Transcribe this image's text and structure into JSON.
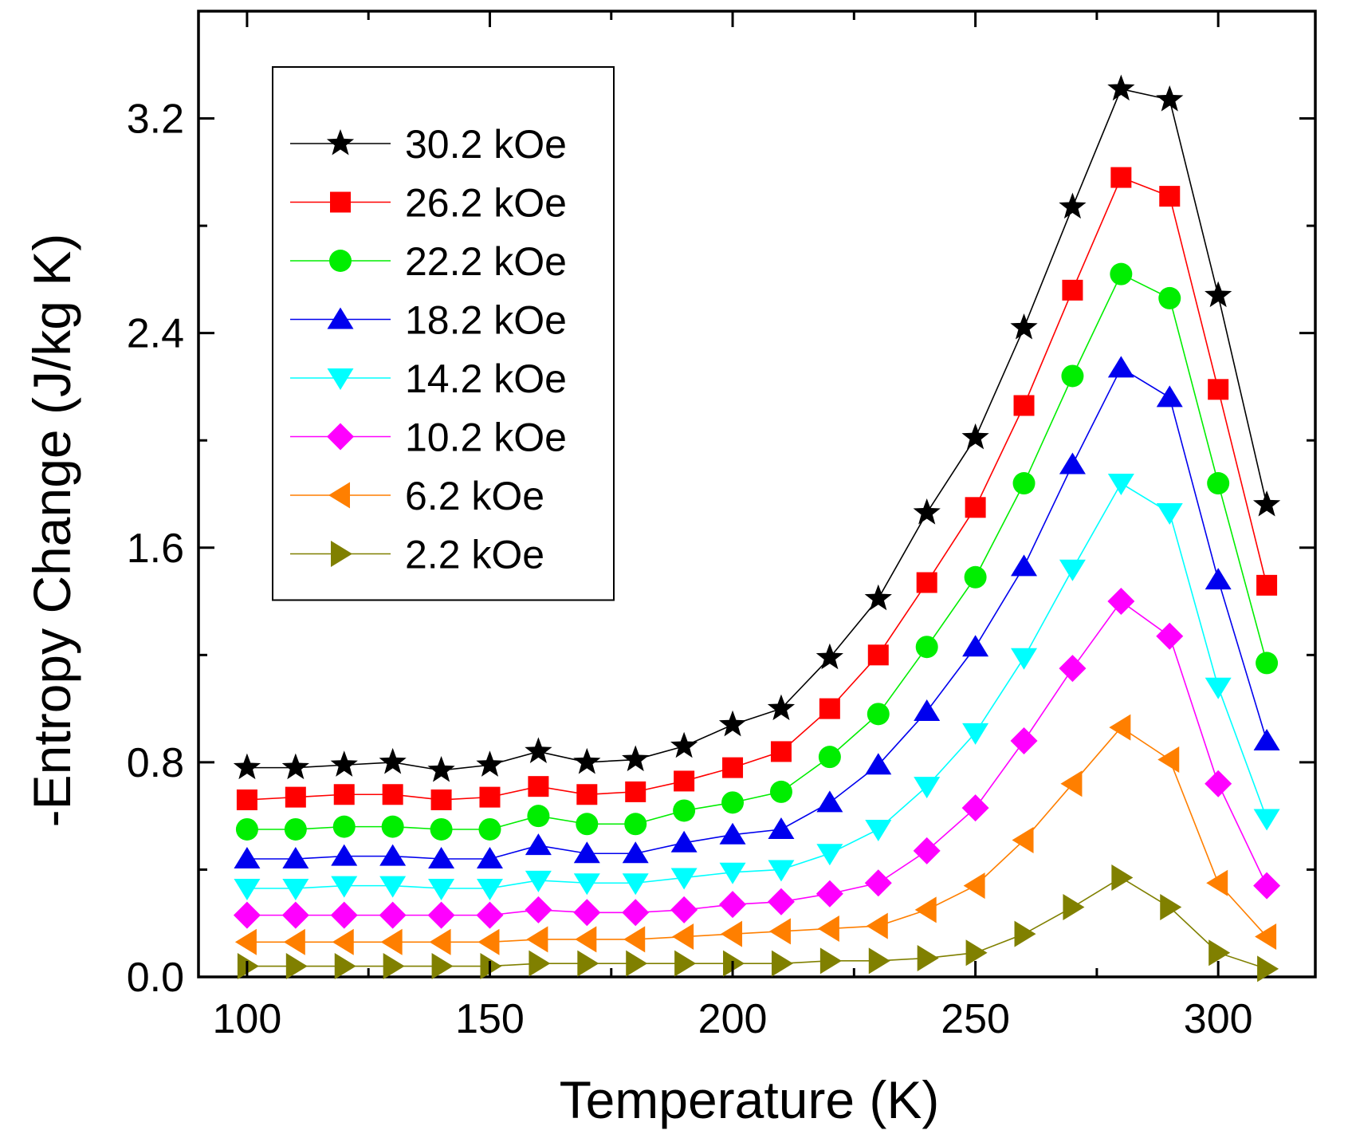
{
  "chart_data": {
    "type": "line",
    "title": "",
    "xlabel": "Temperature (K)",
    "ylabel": "-Entropy Change (J/kg K)",
    "xlim": [
      90,
      320
    ],
    "ylim": [
      0.0,
      3.6
    ],
    "xticks": [
      100,
      150,
      200,
      250,
      300
    ],
    "yticks": [
      0.0,
      0.8,
      1.6,
      2.4,
      3.2
    ],
    "xtick_labels": [
      "100",
      "150",
      "200",
      "250",
      "300"
    ],
    "ytick_labels": [
      "0.0",
      "0.8",
      "1.6",
      "2.4",
      "3.2"
    ],
    "legend_position": "top-left",
    "grid": false,
    "x": [
      100,
      110,
      120,
      130,
      140,
      150,
      160,
      170,
      180,
      190,
      200,
      210,
      220,
      230,
      240,
      250,
      260,
      270,
      280,
      290,
      300,
      310
    ],
    "series": [
      {
        "name": "30.2 kOe",
        "color": "#000000",
        "marker": "star",
        "values": [
          0.78,
          0.78,
          0.79,
          0.8,
          0.77,
          0.79,
          0.84,
          0.8,
          0.81,
          0.86,
          0.94,
          1.0,
          1.19,
          1.41,
          1.73,
          2.01,
          2.42,
          2.87,
          3.31,
          3.27,
          2.54,
          1.76
        ]
      },
      {
        "name": "26.2 kOe",
        "color": "#ff0000",
        "marker": "square",
        "values": [
          0.66,
          0.67,
          0.68,
          0.68,
          0.66,
          0.67,
          0.71,
          0.68,
          0.69,
          0.73,
          0.78,
          0.84,
          1.0,
          1.2,
          1.47,
          1.75,
          2.13,
          2.56,
          2.98,
          2.91,
          2.19,
          1.46
        ]
      },
      {
        "name": "22.2 kOe",
        "color": "#00ee00",
        "marker": "circle",
        "values": [
          0.55,
          0.55,
          0.56,
          0.56,
          0.55,
          0.55,
          0.6,
          0.57,
          0.57,
          0.62,
          0.65,
          0.69,
          0.82,
          0.98,
          1.23,
          1.49,
          1.84,
          2.24,
          2.62,
          2.53,
          1.84,
          1.17
        ]
      },
      {
        "name": "18.2 kOe",
        "color": "#0000ee",
        "marker": "triangle-up",
        "values": [
          0.44,
          0.44,
          0.45,
          0.45,
          0.44,
          0.44,
          0.49,
          0.46,
          0.46,
          0.5,
          0.53,
          0.55,
          0.65,
          0.79,
          0.99,
          1.23,
          1.53,
          1.91,
          2.27,
          2.16,
          1.48,
          0.88
        ]
      },
      {
        "name": "14.2 kOe",
        "color": "#00ffff",
        "marker": "triangle-down",
        "values": [
          0.33,
          0.33,
          0.34,
          0.34,
          0.33,
          0.33,
          0.36,
          0.35,
          0.35,
          0.37,
          0.39,
          0.4,
          0.46,
          0.55,
          0.71,
          0.91,
          1.19,
          1.52,
          1.84,
          1.73,
          1.08,
          0.59
        ]
      },
      {
        "name": "10.2 kOe",
        "color": "#ff00ff",
        "marker": "diamond",
        "values": [
          0.23,
          0.23,
          0.23,
          0.23,
          0.23,
          0.23,
          0.25,
          0.24,
          0.24,
          0.25,
          0.27,
          0.28,
          0.31,
          0.35,
          0.47,
          0.63,
          0.88,
          1.15,
          1.4,
          1.27,
          0.72,
          0.34
        ]
      },
      {
        "name": "6.2 kOe",
        "color": "#ff7f00",
        "marker": "triangle-left",
        "values": [
          0.13,
          0.13,
          0.13,
          0.13,
          0.13,
          0.13,
          0.14,
          0.14,
          0.14,
          0.15,
          0.16,
          0.17,
          0.18,
          0.19,
          0.25,
          0.34,
          0.51,
          0.72,
          0.93,
          0.81,
          0.35,
          0.15
        ]
      },
      {
        "name": "2.2 kOe",
        "color": "#808000",
        "marker": "triangle-right",
        "values": [
          0.04,
          0.04,
          0.04,
          0.04,
          0.04,
          0.04,
          0.05,
          0.05,
          0.05,
          0.05,
          0.05,
          0.05,
          0.06,
          0.06,
          0.07,
          0.09,
          0.16,
          0.26,
          0.37,
          0.26,
          0.09,
          0.03
        ]
      }
    ]
  }
}
